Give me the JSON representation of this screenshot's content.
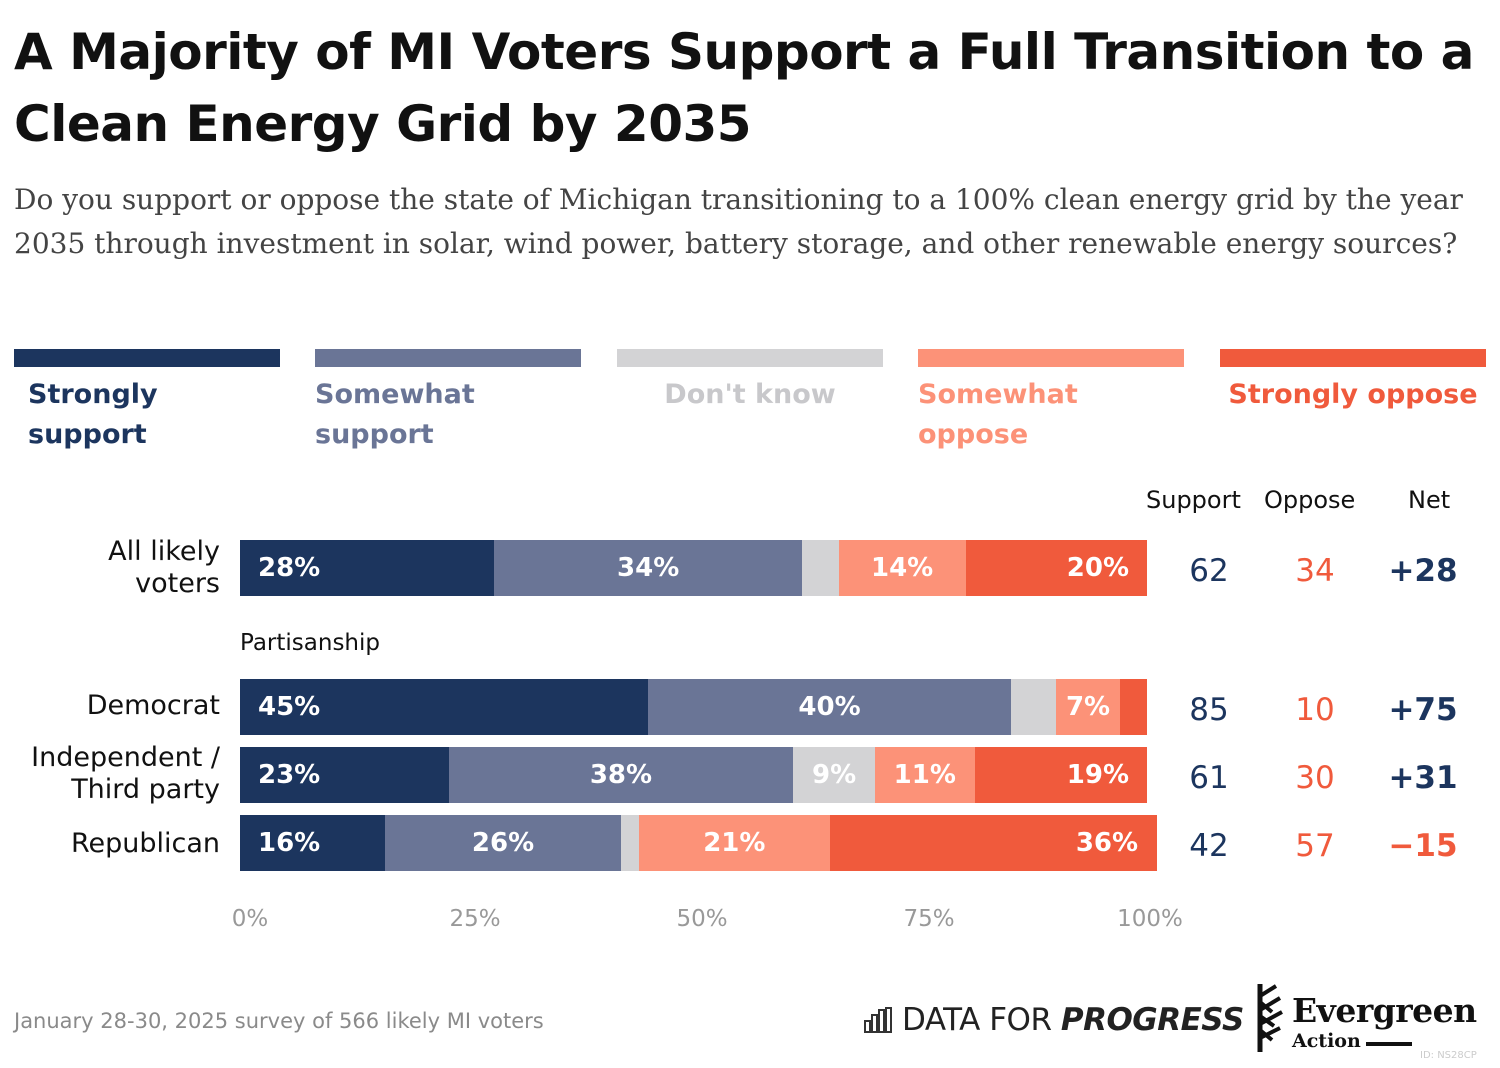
{
  "title": "A Majority of MI Voters Support a Full Transition to a Clean Energy Grid by 2035",
  "subtitle": "Do you support or oppose the state of Michigan transitioning to a 100% clean energy grid by the year 2035 through investment in solar, wind power, battery storage, and other renewable energy sources?",
  "columns": {
    "support": "Support",
    "oppose": "Oppose",
    "net": "Net"
  },
  "colors": {
    "strongly_support": "#1c355e",
    "somewhat_support": "#6a7596",
    "dont_know": "#d3d3d5",
    "somewhat_oppose": "#fc9278",
    "strongly_oppose": "#f05a3c",
    "support_text": "#1c355e",
    "oppose_text": "#f05a3c"
  },
  "legend": [
    {
      "key": "strongly_support",
      "label": "Strongly support",
      "text_color": "#1c355e"
    },
    {
      "key": "somewhat_support",
      "label": "Somewhat support",
      "text_color": "#6a7596"
    },
    {
      "key": "dont_know",
      "label": "Don't know",
      "text_color": "#c8c8cb"
    },
    {
      "key": "somewhat_oppose",
      "label": "Somewhat oppose",
      "text_color": "#fc9278"
    },
    {
      "key": "strongly_oppose",
      "label": "Strongly oppose",
      "text_color": "#f05a3c"
    }
  ],
  "chart_data": {
    "type": "bar",
    "orientation": "horizontal",
    "stacked": true,
    "xlim": [
      0,
      100
    ],
    "x_ticks": [
      "0%",
      "25%",
      "50%",
      "75%",
      "100%"
    ],
    "group_label": "Partisanship",
    "categories": [
      "All likely voters",
      "Democrat",
      "Independent / Third party",
      "Republican"
    ],
    "series": [
      {
        "name": "Strongly support",
        "values": [
          28,
          45,
          23,
          16
        ],
        "labels": [
          "28%",
          "45%",
          "23%",
          "16%"
        ]
      },
      {
        "name": "Somewhat support",
        "values": [
          34,
          40,
          38,
          26
        ],
        "labels": [
          "34%",
          "40%",
          "38%",
          "26%"
        ]
      },
      {
        "name": "Don't know",
        "values": [
          4,
          5,
          9,
          2
        ],
        "labels": [
          "",
          "",
          "9%",
          ""
        ]
      },
      {
        "name": "Somewhat oppose",
        "values": [
          14,
          7,
          11,
          21
        ],
        "labels": [
          "14%",
          "7%",
          "11%",
          "21%"
        ]
      },
      {
        "name": "Strongly oppose",
        "values": [
          20,
          3,
          19,
          36
        ],
        "labels": [
          "20%",
          "",
          "19%",
          "36%"
        ]
      }
    ],
    "support": [
      "62",
      "85",
      "61",
      "42"
    ],
    "oppose": [
      "34",
      "10",
      "30",
      "57"
    ],
    "net": [
      "+28",
      "+75",
      "+31",
      "−15"
    ]
  },
  "footer": {
    "note": "January 28-30, 2025 survey of 566 likely MI voters",
    "logo_dfp_plain": "DATA FOR",
    "logo_dfp_bold": "PROGRESS",
    "logo_ev_name": "Evergreen",
    "logo_ev_sub": "Action",
    "id": "ID: NS28CP"
  }
}
